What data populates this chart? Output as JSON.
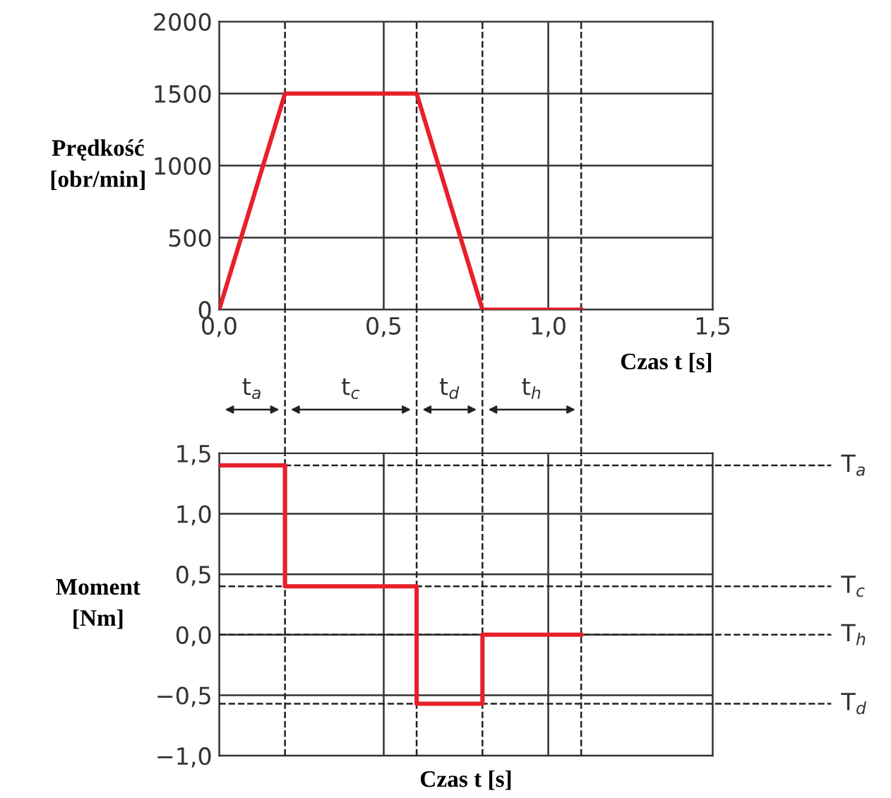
{
  "chart_data": [
    {
      "type": "line",
      "ylabel": "Prędkość\n[obr/min]",
      "xlabel": "Czas t [s]",
      "x": [
        0,
        0.2,
        0.6,
        0.8,
        1.1
      ],
      "series": [
        {
          "color": "#e8202a",
          "values": [
            0,
            1500,
            1500,
            0,
            0
          ]
        }
      ],
      "xlim": [
        0,
        1.5
      ],
      "xticks": [
        {
          "value": 0,
          "label": "0,0"
        },
        {
          "value": 0.5,
          "label": "0,5"
        },
        {
          "value": 1.0,
          "label": "1,0"
        },
        {
          "value": 1.5,
          "label": "1,5"
        }
      ],
      "ylim": [
        0,
        2000
      ],
      "yticks": [
        0,
        500,
        1000,
        1500,
        2000
      ],
      "grid": true,
      "marker": "none",
      "line_style": "solid",
      "ref_lines": [
        {
          "axis": "x",
          "value": 0.2,
          "line_style": "dashed",
          "color": "#222222"
        },
        {
          "axis": "x",
          "value": 0.6,
          "line_style": "dashed",
          "color": "#222222"
        },
        {
          "axis": "x",
          "value": 0.8,
          "line_style": "dashed",
          "color": "#222222"
        },
        {
          "axis": "x",
          "value": 1.1,
          "line_style": "dashed",
          "color": "#222222"
        }
      ],
      "annotations": [
        "t$_{a}$",
        "t$_{c}$",
        "t$_{d}$",
        "t$_{h}$"
      ]
    },
    {
      "type": "step",
      "ylabel": "Moment\n[Nm]",
      "xlabel": "Czas t [s]",
      "x": [
        0,
        0.2,
        0.6,
        0.8,
        1.1
      ],
      "series": [
        {
          "color": "#e8202a",
          "values": [
            1.4,
            0.4,
            -0.57,
            0,
            0
          ]
        }
      ],
      "xlim": [
        0,
        1.5
      ],
      "xticks": [
        0,
        0.5,
        1.0,
        1.5
      ],
      "tick_labels": "y",
      "ylim": [
        -1.0,
        1.5
      ],
      "yticks": [
        {
          "value": -1.0,
          "label": "−1,0"
        },
        {
          "value": -0.5,
          "label": "−0,5"
        },
        {
          "value": 0,
          "label": "0,0"
        },
        {
          "value": 0.5,
          "label": "0,5"
        },
        {
          "value": 1.0,
          "label": "1,0"
        },
        {
          "value": 1.5,
          "label": "1,5"
        }
      ],
      "grid": true,
      "marker": "none",
      "line_style": "solid",
      "ref_lines": [
        {
          "axis": "y",
          "value": 1.4,
          "label": "T$_{a}$",
          "line_style": "dashed",
          "color": "#222222"
        },
        {
          "axis": "y",
          "value": 0.4,
          "label": "T$_{c}$",
          "line_style": "dashed",
          "color": "#222222"
        },
        {
          "axis": "y",
          "value": 0,
          "label": "T$_{h}$",
          "line_style": "dashed",
          "color": "#222222"
        },
        {
          "axis": "y",
          "value": -0.57,
          "label": "T$_{d}$",
          "line_style": "dashed",
          "color": "#222222"
        },
        {
          "axis": "x",
          "value": 0.2,
          "line_style": "dashed",
          "color": "#222222"
        },
        {
          "axis": "x",
          "value": 0.6,
          "line_style": "dashed",
          "color": "#222222"
        },
        {
          "axis": "x",
          "value": 0.8,
          "line_style": "dashed",
          "color": "#222222"
        },
        {
          "axis": "x",
          "value": 1.1,
          "line_style": "dashed",
          "color": "#222222"
        }
      ]
    }
  ]
}
